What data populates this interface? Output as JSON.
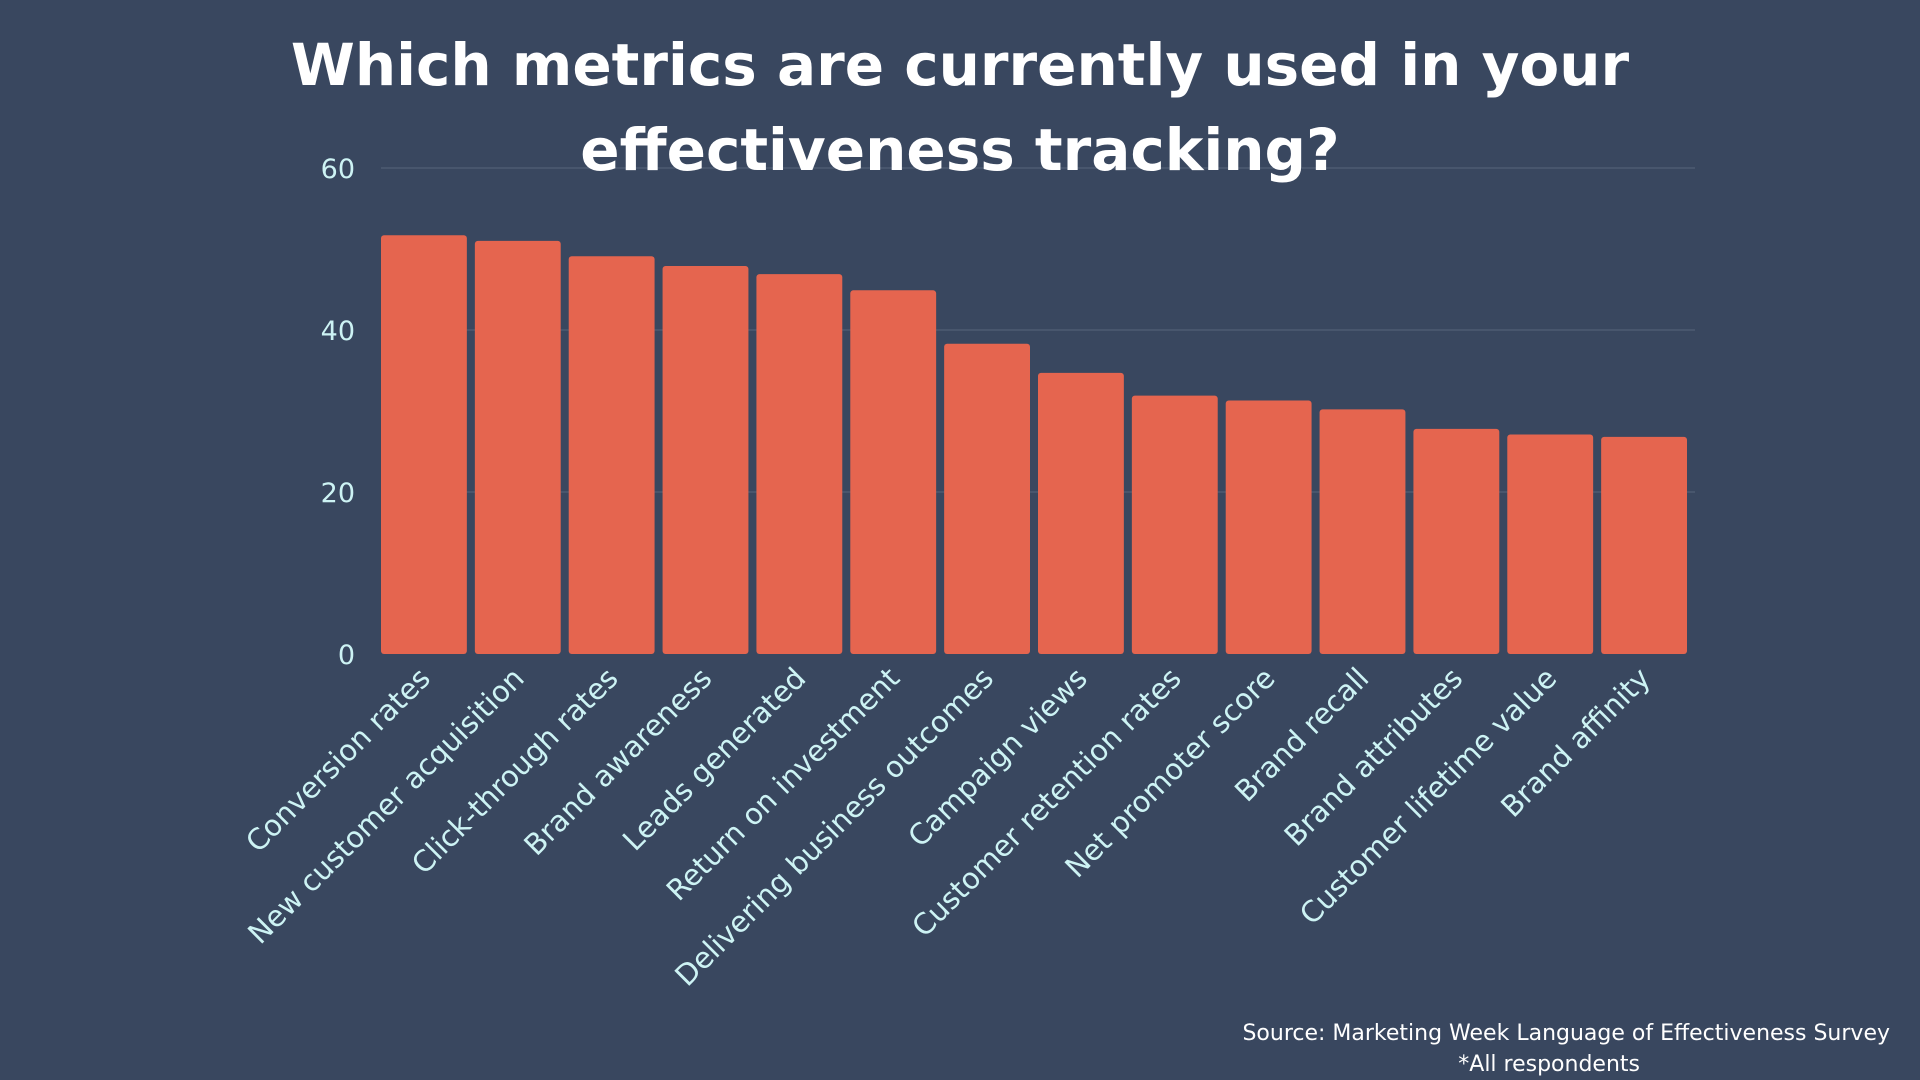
{
  "chart_data": {
    "type": "bar",
    "title_lines": [
      "Which metrics are currently used in your",
      "effectiveness tracking?"
    ],
    "categories": [
      "Conversion rates",
      "New customer acquisition",
      "Click-through rates",
      "Brand awareness",
      "Leads generated",
      "Return on investment",
      "Delivering business outcomes",
      "Campaign views",
      "Customer retention rates",
      "Net promoter score",
      "Brand recall",
      "Brand attributes",
      "Customer lifetime value",
      "Brand affinity"
    ],
    "values": [
      51.7,
      51.0,
      49.1,
      47.9,
      46.9,
      44.9,
      38.3,
      34.7,
      31.9,
      31.3,
      30.2,
      27.8,
      27.1,
      26.8
    ],
    "ylim": [
      0,
      60
    ],
    "yticks": [
      "0",
      "20",
      "40",
      "60"
    ],
    "grid": true,
    "xlabel": "",
    "ylabel": "",
    "colors": {
      "background": "#39475f",
      "bar": "#e5654f",
      "tick": "#cdf3f4",
      "grid": "#56657b",
      "text": "#ffffff"
    }
  },
  "source": {
    "line1": "Source: Marketing Week Language of Effectiveness Survey",
    "line2": "*All respondents"
  }
}
